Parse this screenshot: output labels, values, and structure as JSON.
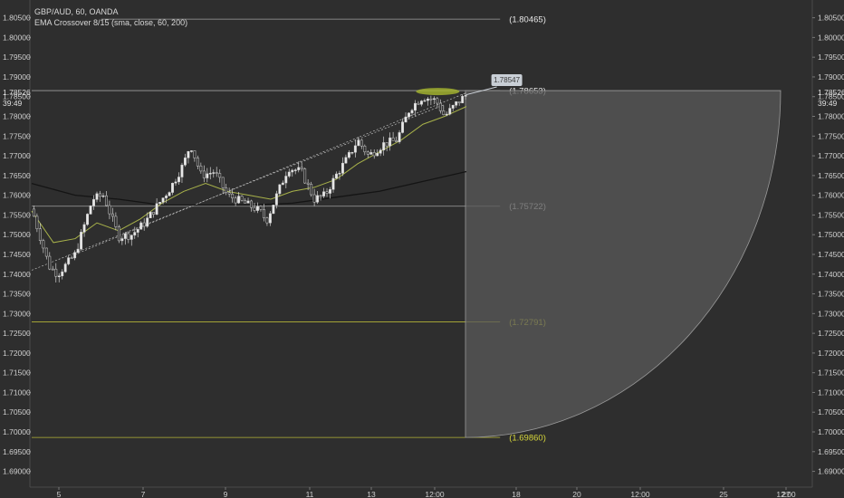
{
  "header": {
    "symbol_line": "GBP/AUD, 60, OANDA",
    "indicator_line": "EMA Crossover 8/15 (sma, close, 60, 200)"
  },
  "price_label": {
    "value": "1.78526",
    "countdown": "39:49"
  },
  "colors": {
    "background": "#2e2e2e",
    "text": "#d8d8d8",
    "candle": "#cfcfcf",
    "ema_fast": "#a8b24a",
    "ema_slow": "#141414",
    "level_gray": "#bdbdbd",
    "level_yellow": "#d6d63a",
    "projection_fill": "#5a5a5a",
    "projection_stroke": "#9a9a9a",
    "tooltip_bg": "#c9cfd6"
  },
  "chart_data": {
    "type": "candlestick",
    "title": "GBP/AUD, 60, OANDA",
    "indicator": "EMA Crossover 8/15 (sma, close, 60, 200)",
    "ylim": [
      1.686,
      1.8095
    ],
    "y_ticks": [
      "1.80500",
      "1.80000",
      "1.79500",
      "1.79000",
      "1.78500",
      "1.78000",
      "1.77500",
      "1.77000",
      "1.76500",
      "1.76000",
      "1.75500",
      "1.75000",
      "1.74500",
      "1.74000",
      "1.73500",
      "1.73000",
      "1.72500",
      "1.72000",
      "1.71500",
      "1.71000",
      "1.70500",
      "1.70000",
      "1.69500",
      "1.69000"
    ],
    "x_ticks": [
      "5",
      "7",
      "9",
      "11",
      "13",
      "12:00",
      "18",
      "20",
      "12:00",
      "25",
      "27",
      "12:00"
    ],
    "price_path": [
      [
        0,
        1.7565
      ],
      [
        8,
        1.742
      ],
      [
        12,
        1.74
      ],
      [
        20,
        1.745
      ],
      [
        28,
        1.759
      ],
      [
        33,
        1.76
      ],
      [
        40,
        1.7495
      ],
      [
        46,
        1.75
      ],
      [
        52,
        1.753
      ],
      [
        58,
        1.7575
      ],
      [
        64,
        1.762
      ],
      [
        70,
        1.768
      ],
      [
        73,
        1.773
      ],
      [
        78,
        1.765
      ],
      [
        84,
        1.766
      ],
      [
        90,
        1.76
      ],
      [
        98,
        1.758
      ],
      [
        105,
        1.756
      ],
      [
        108,
        1.7535
      ],
      [
        112,
        1.759
      ],
      [
        118,
        1.767
      ],
      [
        124,
        1.766
      ],
      [
        130,
        1.759
      ],
      [
        135,
        1.76
      ],
      [
        140,
        1.765
      ],
      [
        146,
        1.77
      ],
      [
        150,
        1.774
      ],
      [
        155,
        1.77
      ],
      [
        162,
        1.773
      ],
      [
        168,
        1.774
      ],
      [
        174,
        1.782
      ],
      [
        180,
        1.785
      ],
      [
        186,
        1.784
      ],
      [
        190,
        1.78
      ],
      [
        195,
        1.783
      ],
      [
        200,
        1.7855
      ]
    ],
    "ema_fast_path": [
      [
        0,
        1.756
      ],
      [
        10,
        1.748
      ],
      [
        20,
        1.749
      ],
      [
        30,
        1.753
      ],
      [
        40,
        1.751
      ],
      [
        50,
        1.754
      ],
      [
        60,
        1.758
      ],
      [
        70,
        1.761
      ],
      [
        80,
        1.763
      ],
      [
        90,
        1.761
      ],
      [
        100,
        1.76
      ],
      [
        110,
        1.759
      ],
      [
        120,
        1.761
      ],
      [
        130,
        1.762
      ],
      [
        140,
        1.764
      ],
      [
        150,
        1.768
      ],
      [
        160,
        1.771
      ],
      [
        170,
        1.774
      ],
      [
        180,
        1.778
      ],
      [
        190,
        1.78
      ],
      [
        200,
        1.7825
      ]
    ],
    "ema_slow_path": [
      [
        0,
        1.763
      ],
      [
        20,
        1.76
      ],
      [
        40,
        1.759
      ],
      [
        60,
        1.7575
      ],
      [
        80,
        1.7575
      ],
      [
        100,
        1.7575
      ],
      [
        120,
        1.758
      ],
      [
        140,
        1.7595
      ],
      [
        160,
        1.761
      ],
      [
        180,
        1.7635
      ],
      [
        200,
        1.766
      ]
    ],
    "ema_fast_extra": [
      [
        10,
        1.754
      ],
      [
        20,
        1.756
      ],
      [
        30,
        1.7565
      ],
      [
        40,
        1.7555
      ],
      [
        50,
        1.757
      ],
      [
        60,
        1.758
      ],
      [
        70,
        1.759
      ],
      [
        80,
        1.7595
      ]
    ],
    "channel": {
      "upper": [
        [
          20,
          1.745
        ],
        [
          200,
          1.786
        ]
      ],
      "lower": [
        [
          0,
          1.741
        ],
        [
          190,
          1.783
        ]
      ]
    },
    "levels": [
      {
        "value": 1.80465,
        "label": "(1.80465)",
        "style": "gray",
        "x_start": 32,
        "x_end": 198
      },
      {
        "value": 1.78653,
        "label": "(1.78653)",
        "style": "gray",
        "x_start": 0,
        "x_end": 198
      },
      {
        "value": 1.75722,
        "label": "(1.75722)",
        "style": "gray",
        "x_start": 0,
        "x_end": 198
      },
      {
        "value": 1.72791,
        "label": "(1.72791)",
        "style": "yellow",
        "x_start": 0,
        "x_end": 198
      },
      {
        "value": 1.6986,
        "label": "(1.69860)",
        "style": "yellow",
        "x_start": 0,
        "x_end": 198
      }
    ],
    "projection": {
      "x_start": 200,
      "y_top": 1.78653,
      "y_bottom": 1.6986,
      "x_end": 350
    },
    "tooltip": {
      "value": "1.78547",
      "x": 204,
      "y": 1.7893
    },
    "highlight": {
      "x": 186,
      "y": 1.7863
    }
  }
}
